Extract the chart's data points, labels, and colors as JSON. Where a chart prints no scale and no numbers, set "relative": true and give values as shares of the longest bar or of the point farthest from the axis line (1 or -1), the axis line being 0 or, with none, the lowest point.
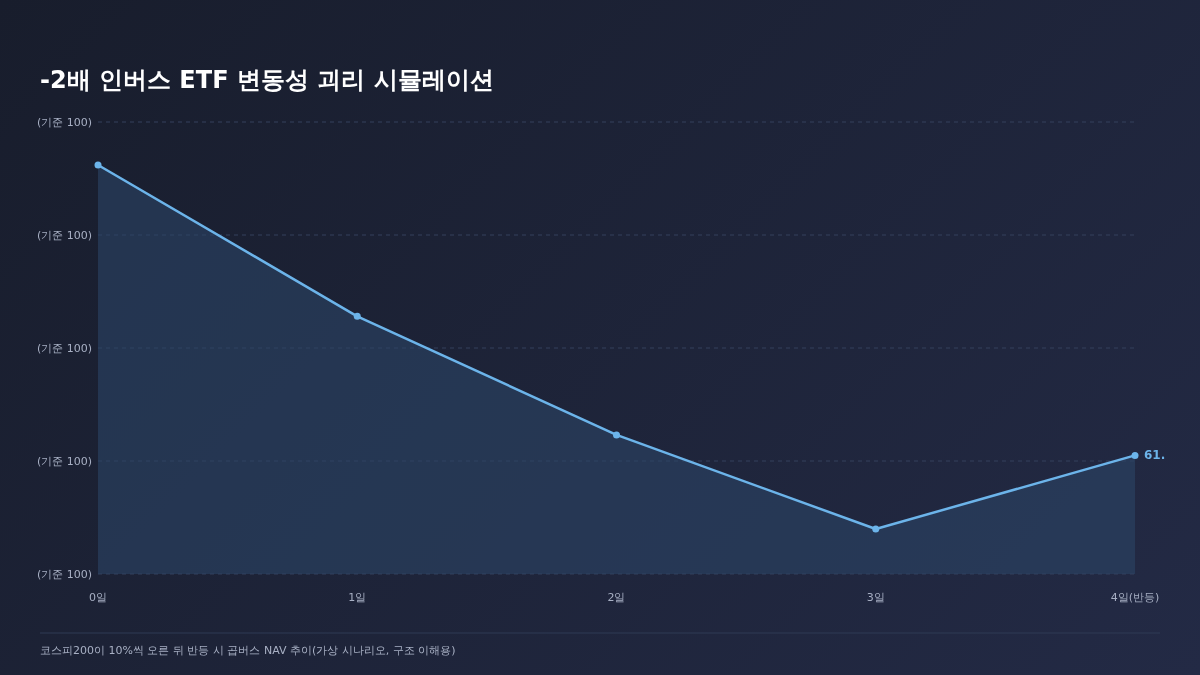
{
  "chart_data": {
    "type": "area",
    "title": "-2배 인버스 ETF 변동성 괴리 시뮬레이션",
    "categories": [
      "0일",
      "1일",
      "2일",
      "3일",
      "4일(반등)"
    ],
    "values": [
      1,
      0.63,
      0.34,
      0.11,
      0.29
    ],
    "color": "#6cb4ea",
    "relative": true,
    "grid": "y",
    "marker": "circle",
    "line_style": "solid",
    "annotations": [
      {
        "text": "61.",
        "x": "4일(반등)",
        "y": 0.29
      },
      "(기준 100)",
      "(기준 100)",
      "(기준 100)",
      "(기준 100)",
      "(기준 100)",
      "코스피200이 10%씩 오른 뒤 반등 시 곱버스 NAV 추이(가상 시나리오, 구조 이해용)"
    ]
  }
}
